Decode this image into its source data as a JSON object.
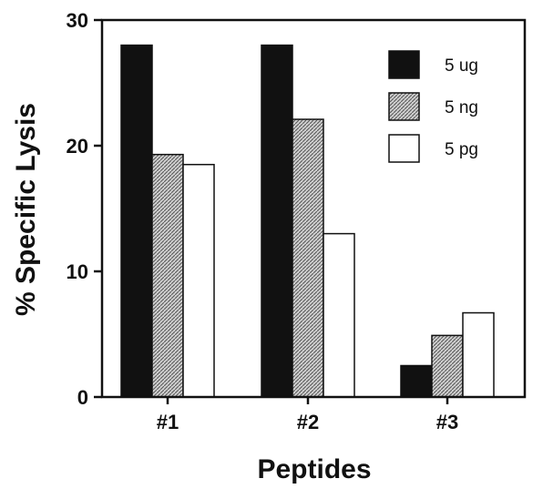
{
  "chart_data": {
    "type": "bar",
    "title": "",
    "xlabel": "Peptides",
    "ylabel": "% Specific Lysis",
    "categories": [
      "#1",
      "#2",
      "#3"
    ],
    "series": [
      {
        "name": "5 ug",
        "values": [
          28.0,
          28.0,
          2.5
        ],
        "color": "#111111",
        "pattern": "solid"
      },
      {
        "name": "5 ng",
        "values": [
          19.3,
          22.1,
          4.9
        ],
        "color": "#bdbdbd",
        "pattern": "hatched"
      },
      {
        "name": "5 pg",
        "values": [
          18.5,
          13.0,
          6.7
        ],
        "color": "#ffffff",
        "pattern": "open"
      }
    ],
    "ylim": [
      0,
      30
    ],
    "yticks": [
      "0",
      "10",
      "20",
      "30"
    ],
    "grid": false,
    "legend_position": "top-right"
  }
}
